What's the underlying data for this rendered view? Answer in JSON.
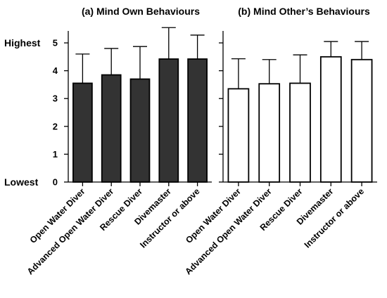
{
  "chart_data": [
    {
      "type": "bar",
      "title": "(a) Mind Own Behaviours",
      "categories": [
        "Open Water Diver",
        "Advanced Open Water Diver",
        "Rescue Diver",
        "Divemaster",
        "Instructor or above"
      ],
      "values": [
        3.55,
        3.85,
        3.7,
        4.42,
        4.42
      ],
      "error_upper": [
        4.6,
        4.8,
        4.87,
        5.55,
        5.28
      ],
      "bar_color": "#333333",
      "ylim": [
        0,
        5
      ],
      "yticks": [
        "0",
        "1",
        "2",
        "3",
        "4",
        "5"
      ],
      "y_anchor_labels": {
        "top": "Highest",
        "bottom": "Lowest"
      },
      "grid": false
    },
    {
      "type": "bar",
      "title": "(b) Mind Other’s Behaviours",
      "categories": [
        "Open Water Diver",
        "Advanced Open Water Diver",
        "Rescue Diver",
        "Divemaster",
        "Instructor or above"
      ],
      "values": [
        3.35,
        3.53,
        3.55,
        4.5,
        4.4
      ],
      "error_upper": [
        4.43,
        4.4,
        4.57,
        5.05,
        5.05
      ],
      "bar_color": "#ffffff",
      "ylim": [
        0,
        5
      ],
      "yticks": [
        "",
        "",
        "",
        "",
        "",
        ""
      ],
      "grid": false
    }
  ]
}
